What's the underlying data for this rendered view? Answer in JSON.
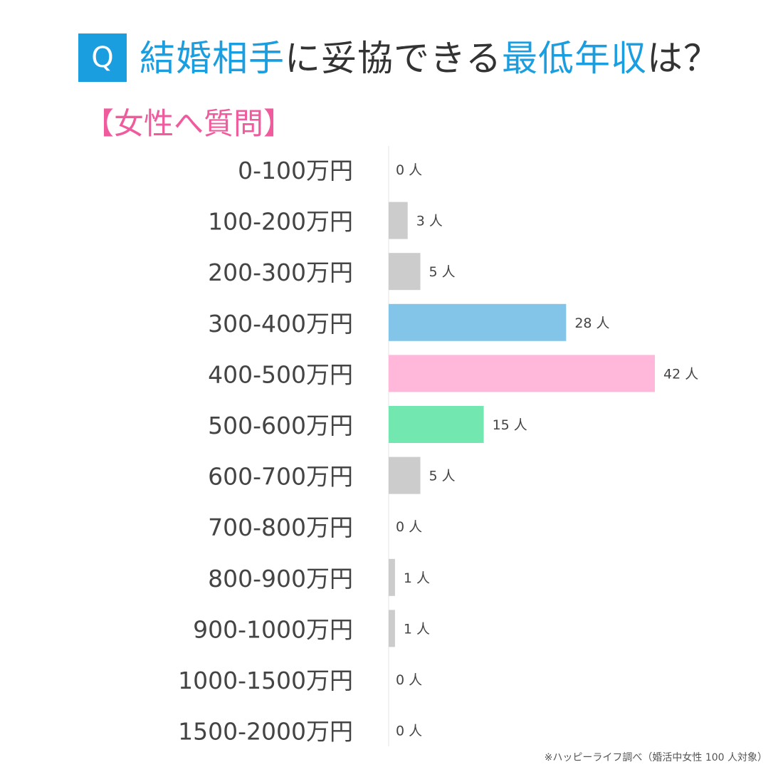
{
  "header": {
    "badge": "Q",
    "title_parts": [
      {
        "text": "結婚相手",
        "highlight": true
      },
      {
        "text": "に妥協できる",
        "highlight": false
      },
      {
        "text": "最低年収",
        "highlight": true
      },
      {
        "text": "は？",
        "highlight": false
      }
    ],
    "subtitle": "【女性へ質問】"
  },
  "colors": {
    "accent_blue": "#1a9ee0",
    "accent_pink": "#ef5b9c",
    "bar_gray": "#cccccc",
    "bar_blue": "#82c5e8",
    "bar_pink": "#ffb8d9",
    "bar_green": "#72e8b0"
  },
  "chart_data": {
    "type": "bar",
    "orientation": "horizontal",
    "categories": [
      "0-100万円",
      "100-200万円",
      "200-300万円",
      "300-400万円",
      "400-500万円",
      "500-600万円",
      "600-700万円",
      "700-800万円",
      "800-900万円",
      "900-1000万円",
      "1000-1500万円",
      "1500-2000万円"
    ],
    "values": [
      0,
      3,
      5,
      28,
      42,
      15,
      5,
      0,
      1,
      1,
      0,
      0
    ],
    "value_labels": [
      "0 人",
      "3 人",
      "5 人",
      "28 人",
      "42 人",
      "15 人",
      "5 人",
      "0 人",
      "1 人",
      "1 人",
      "0 人",
      "0 人"
    ],
    "bar_colors": [
      "gray",
      "gray",
      "gray",
      "blue",
      "pink",
      "green",
      "gray",
      "gray",
      "gray",
      "gray",
      "gray",
      "gray"
    ],
    "xlim": [
      0,
      42
    ],
    "grid": false,
    "legend": "none"
  },
  "footnote": "※ハッピーライフ調べ（婚活中女性 100 人対象）"
}
